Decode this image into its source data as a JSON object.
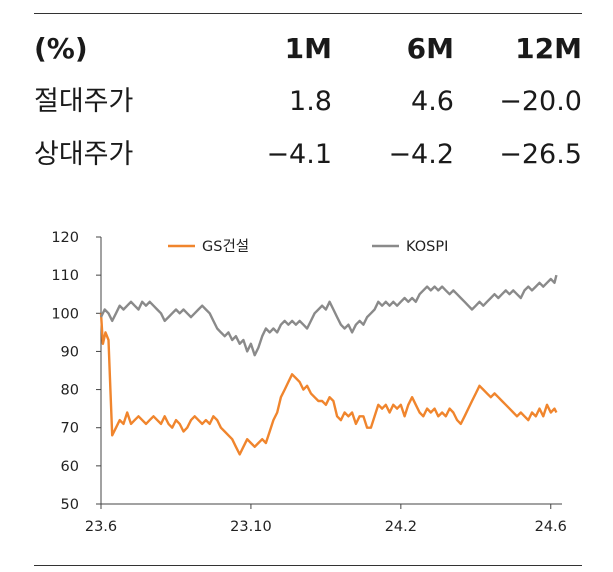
{
  "table": {
    "header": {
      "label": "(%)",
      "m1": "1M",
      "m6": "6M",
      "m12": "12M"
    },
    "rows": [
      {
        "label": "절대주가",
        "m1": "1.8",
        "m6": "4.6",
        "m12": "−20.0"
      },
      {
        "label": "상대주가",
        "m1": "−4.1",
        "m6": "−4.2",
        "m12": "−26.5"
      }
    ]
  },
  "colors": {
    "gs": "#f0852d",
    "kospi": "#8a8a8a"
  },
  "chart_data": {
    "type": "line",
    "title": "",
    "xlabel": "",
    "ylabel": "",
    "ylim": [
      50,
      120
    ],
    "yticks": [
      "50",
      "60",
      "70",
      "80",
      "90",
      "100",
      "110",
      "120"
    ],
    "xlim": [
      0,
      12.3
    ],
    "xticks": [
      {
        "label": "23.6",
        "x": 0
      },
      {
        "label": "23.10",
        "x": 4
      },
      {
        "label": "24.2",
        "x": 8
      },
      {
        "label": "24.6",
        "x": 12
      }
    ],
    "legend": [
      "GS건설",
      "KOSPI"
    ],
    "series": [
      {
        "name": "GS건설",
        "points": [
          [
            0,
            100
          ],
          [
            0.05,
            92
          ],
          [
            0.12,
            95
          ],
          [
            0.2,
            93
          ],
          [
            0.25,
            80
          ],
          [
            0.3,
            68
          ],
          [
            0.4,
            70
          ],
          [
            0.5,
            72
          ],
          [
            0.6,
            71
          ],
          [
            0.7,
            74
          ],
          [
            0.8,
            71
          ],
          [
            0.9,
            72
          ],
          [
            1.0,
            73
          ],
          [
            1.1,
            72
          ],
          [
            1.2,
            71
          ],
          [
            1.3,
            72
          ],
          [
            1.4,
            73
          ],
          [
            1.5,
            72
          ],
          [
            1.6,
            71
          ],
          [
            1.7,
            73
          ],
          [
            1.8,
            71
          ],
          [
            1.9,
            70
          ],
          [
            2.0,
            72
          ],
          [
            2.1,
            71
          ],
          [
            2.2,
            69
          ],
          [
            2.3,
            70
          ],
          [
            2.4,
            72
          ],
          [
            2.5,
            73
          ],
          [
            2.6,
            72
          ],
          [
            2.7,
            71
          ],
          [
            2.8,
            72
          ],
          [
            2.9,
            71
          ],
          [
            3.0,
            73
          ],
          [
            3.1,
            72
          ],
          [
            3.2,
            70
          ],
          [
            3.3,
            69
          ],
          [
            3.4,
            68
          ],
          [
            3.5,
            67
          ],
          [
            3.6,
            65
          ],
          [
            3.7,
            63
          ],
          [
            3.8,
            65
          ],
          [
            3.9,
            67
          ],
          [
            4.0,
            66
          ],
          [
            4.1,
            65
          ],
          [
            4.2,
            66
          ],
          [
            4.3,
            67
          ],
          [
            4.4,
            66
          ],
          [
            4.5,
            69
          ],
          [
            4.6,
            72
          ],
          [
            4.7,
            74
          ],
          [
            4.8,
            78
          ],
          [
            4.9,
            80
          ],
          [
            5.0,
            82
          ],
          [
            5.1,
            84
          ],
          [
            5.2,
            83
          ],
          [
            5.3,
            82
          ],
          [
            5.4,
            80
          ],
          [
            5.5,
            81
          ],
          [
            5.6,
            79
          ],
          [
            5.7,
            78
          ],
          [
            5.8,
            77
          ],
          [
            5.9,
            77
          ],
          [
            6.0,
            76
          ],
          [
            6.1,
            78
          ],
          [
            6.2,
            77
          ],
          [
            6.3,
            73
          ],
          [
            6.4,
            72
          ],
          [
            6.5,
            74
          ],
          [
            6.6,
            73
          ],
          [
            6.7,
            74
          ],
          [
            6.8,
            71
          ],
          [
            6.9,
            73
          ],
          [
            7.0,
            73
          ],
          [
            7.1,
            70
          ],
          [
            7.2,
            70
          ],
          [
            7.3,
            73
          ],
          [
            7.4,
            76
          ],
          [
            7.5,
            75
          ],
          [
            7.6,
            76
          ],
          [
            7.7,
            74
          ],
          [
            7.8,
            76
          ],
          [
            7.9,
            75
          ],
          [
            8.0,
            76
          ],
          [
            8.1,
            73
          ],
          [
            8.2,
            76
          ],
          [
            8.3,
            78
          ],
          [
            8.4,
            76
          ],
          [
            8.5,
            74
          ],
          [
            8.6,
            73
          ],
          [
            8.7,
            75
          ],
          [
            8.8,
            74
          ],
          [
            8.9,
            75
          ],
          [
            9.0,
            73
          ],
          [
            9.1,
            74
          ],
          [
            9.2,
            73
          ],
          [
            9.3,
            75
          ],
          [
            9.4,
            74
          ],
          [
            9.5,
            72
          ],
          [
            9.6,
            71
          ],
          [
            9.7,
            73
          ],
          [
            9.8,
            75
          ],
          [
            9.9,
            77
          ],
          [
            10.0,
            79
          ],
          [
            10.1,
            81
          ],
          [
            10.2,
            80
          ],
          [
            10.3,
            79
          ],
          [
            10.4,
            78
          ],
          [
            10.5,
            79
          ],
          [
            10.6,
            78
          ],
          [
            10.7,
            77
          ],
          [
            10.8,
            76
          ],
          [
            10.9,
            75
          ],
          [
            11.0,
            74
          ],
          [
            11.1,
            73
          ],
          [
            11.2,
            74
          ],
          [
            11.3,
            73
          ],
          [
            11.4,
            72
          ],
          [
            11.5,
            74
          ],
          [
            11.6,
            73
          ],
          [
            11.7,
            75
          ],
          [
            11.8,
            73
          ],
          [
            11.9,
            76
          ],
          [
            12.0,
            74
          ],
          [
            12.1,
            75
          ],
          [
            12.15,
            74
          ]
        ]
      },
      {
        "name": "KOSPI",
        "points": [
          [
            0,
            99
          ],
          [
            0.1,
            101
          ],
          [
            0.2,
            100
          ],
          [
            0.3,
            98
          ],
          [
            0.4,
            100
          ],
          [
            0.5,
            102
          ],
          [
            0.6,
            101
          ],
          [
            0.7,
            102
          ],
          [
            0.8,
            103
          ],
          [
            0.9,
            102
          ],
          [
            1.0,
            101
          ],
          [
            1.1,
            103
          ],
          [
            1.2,
            102
          ],
          [
            1.3,
            103
          ],
          [
            1.4,
            102
          ],
          [
            1.5,
            101
          ],
          [
            1.6,
            100
          ],
          [
            1.7,
            98
          ],
          [
            1.8,
            99
          ],
          [
            1.9,
            100
          ],
          [
            2.0,
            101
          ],
          [
            2.1,
            100
          ],
          [
            2.2,
            101
          ],
          [
            2.3,
            100
          ],
          [
            2.4,
            99
          ],
          [
            2.5,
            100
          ],
          [
            2.6,
            101
          ],
          [
            2.7,
            102
          ],
          [
            2.8,
            101
          ],
          [
            2.9,
            100
          ],
          [
            3.0,
            98
          ],
          [
            3.1,
            96
          ],
          [
            3.2,
            95
          ],
          [
            3.3,
            94
          ],
          [
            3.4,
            95
          ],
          [
            3.5,
            93
          ],
          [
            3.6,
            94
          ],
          [
            3.7,
            92
          ],
          [
            3.8,
            93
          ],
          [
            3.9,
            90
          ],
          [
            4.0,
            92
          ],
          [
            4.1,
            89
          ],
          [
            4.2,
            91
          ],
          [
            4.3,
            94
          ],
          [
            4.4,
            96
          ],
          [
            4.5,
            95
          ],
          [
            4.6,
            96
          ],
          [
            4.7,
            95
          ],
          [
            4.8,
            97
          ],
          [
            4.9,
            98
          ],
          [
            5.0,
            97
          ],
          [
            5.1,
            98
          ],
          [
            5.2,
            97
          ],
          [
            5.3,
            98
          ],
          [
            5.4,
            97
          ],
          [
            5.5,
            96
          ],
          [
            5.6,
            98
          ],
          [
            5.7,
            100
          ],
          [
            5.8,
            101
          ],
          [
            5.9,
            102
          ],
          [
            6.0,
            101
          ],
          [
            6.1,
            103
          ],
          [
            6.2,
            101
          ],
          [
            6.3,
            99
          ],
          [
            6.4,
            97
          ],
          [
            6.5,
            96
          ],
          [
            6.6,
            97
          ],
          [
            6.7,
            95
          ],
          [
            6.8,
            97
          ],
          [
            6.9,
            98
          ],
          [
            7.0,
            97
          ],
          [
            7.1,
            99
          ],
          [
            7.2,
            100
          ],
          [
            7.3,
            101
          ],
          [
            7.4,
            103
          ],
          [
            7.5,
            102
          ],
          [
            7.6,
            103
          ],
          [
            7.7,
            102
          ],
          [
            7.8,
            103
          ],
          [
            7.9,
            102
          ],
          [
            8.0,
            103
          ],
          [
            8.1,
            104
          ],
          [
            8.2,
            103
          ],
          [
            8.3,
            104
          ],
          [
            8.4,
            103
          ],
          [
            8.5,
            105
          ],
          [
            8.6,
            106
          ],
          [
            8.7,
            107
          ],
          [
            8.8,
            106
          ],
          [
            8.9,
            107
          ],
          [
            9.0,
            106
          ],
          [
            9.1,
            107
          ],
          [
            9.2,
            106
          ],
          [
            9.3,
            105
          ],
          [
            9.4,
            106
          ],
          [
            9.5,
            105
          ],
          [
            9.6,
            104
          ],
          [
            9.7,
            103
          ],
          [
            9.8,
            102
          ],
          [
            9.9,
            101
          ],
          [
            10.0,
            102
          ],
          [
            10.1,
            103
          ],
          [
            10.2,
            102
          ],
          [
            10.3,
            103
          ],
          [
            10.4,
            104
          ],
          [
            10.5,
            105
          ],
          [
            10.6,
            104
          ],
          [
            10.7,
            105
          ],
          [
            10.8,
            106
          ],
          [
            10.9,
            105
          ],
          [
            11.0,
            106
          ],
          [
            11.1,
            105
          ],
          [
            11.2,
            104
          ],
          [
            11.3,
            106
          ],
          [
            11.4,
            107
          ],
          [
            11.5,
            106
          ],
          [
            11.6,
            107
          ],
          [
            11.7,
            108
          ],
          [
            11.8,
            107
          ],
          [
            11.9,
            108
          ],
          [
            12.0,
            109
          ],
          [
            12.1,
            108
          ],
          [
            12.15,
            110
          ]
        ]
      }
    ]
  }
}
